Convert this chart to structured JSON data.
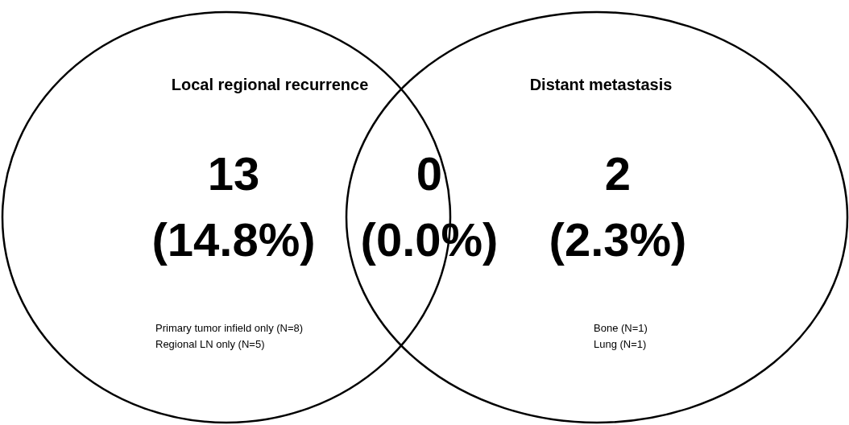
{
  "chart_data": {
    "type": "other",
    "categories": [
      "Local regional recurrence",
      null,
      "Distant metastasis"
    ],
    "values": [
      13,
      0,
      2
    ],
    "data_labels": true,
    "annotations": [
      "(14.8%)",
      "(0.0%)",
      "(2.3%)",
      "Primary tumor infield only (N=8)",
      "Regional LN only (N=5)",
      "Bone (N=1)",
      "Lung (N=1)"
    ]
  }
}
